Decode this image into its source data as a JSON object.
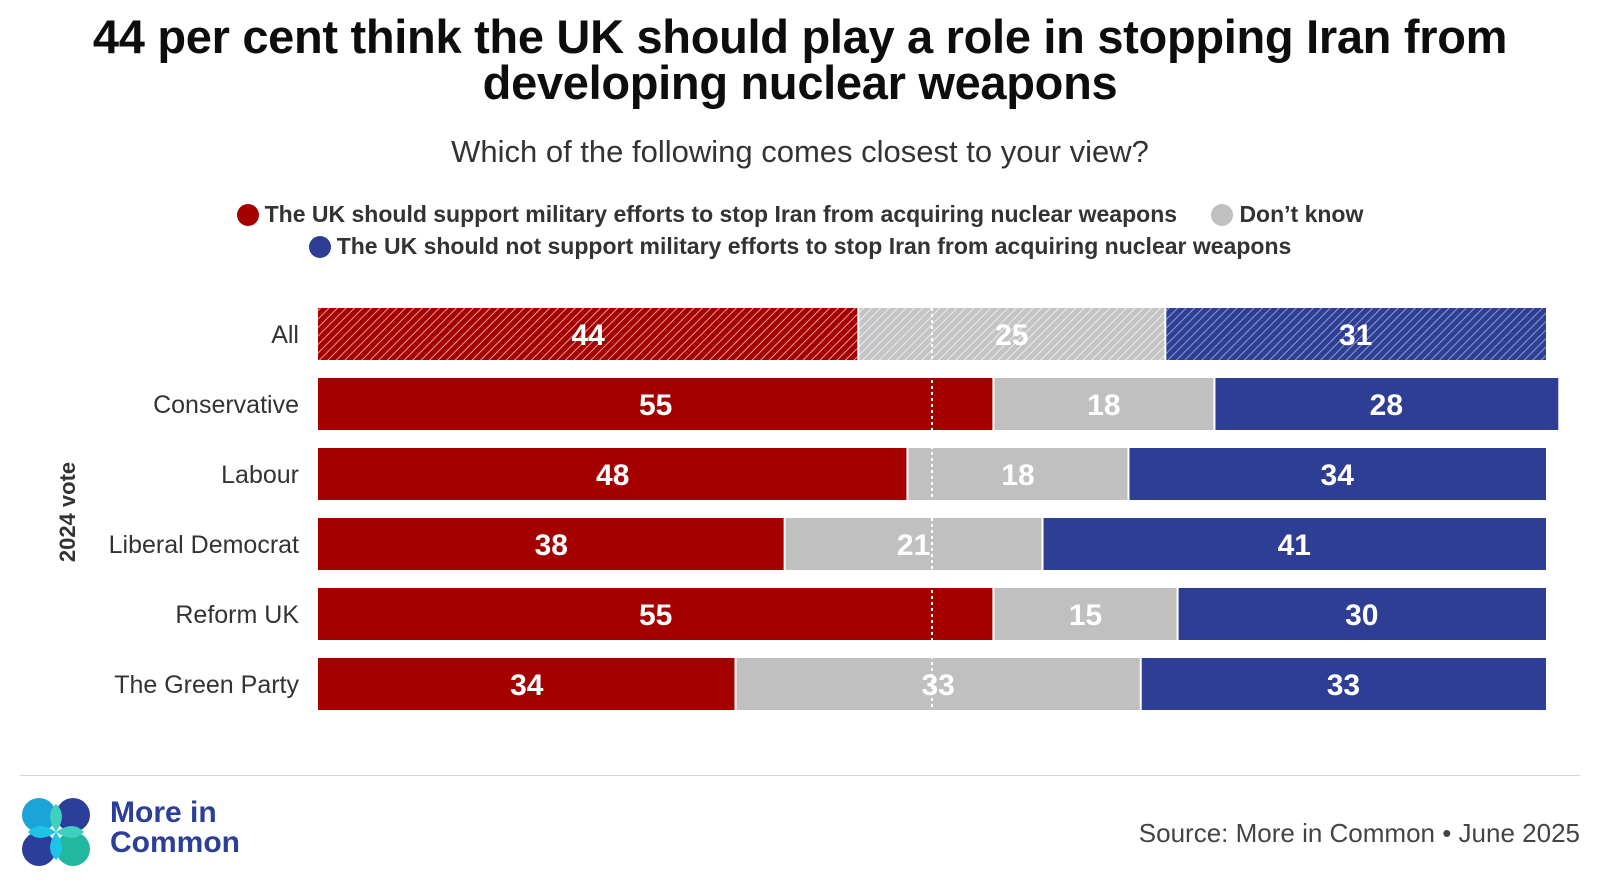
{
  "title_line1": "44 per cent think the UK should play a role in stopping Iran from",
  "title_line2": "developing nuclear weapons",
  "subtitle": "Which of the following comes closest to your view?",
  "legend": {
    "support": "The UK should support military efforts to stop Iran from acquiring nuclear weapons",
    "dont_know": "Don’t know",
    "not_support": "The UK should not support military efforts to stop Iran from acquiring nuclear weapons"
  },
  "colors": {
    "support": "#a50000",
    "dont_know": "#c0c0c0",
    "not_support": "#2e3e94",
    "label_dark": "#333333"
  },
  "axis_group_label": "2024 vote",
  "footer": {
    "logo_line1": "More in",
    "logo_line2": "Common",
    "source": "Source: More in Common • June 2025"
  },
  "chart_data": {
    "type": "bar",
    "orientation": "horizontal",
    "stacked": true,
    "percent": true,
    "categories": [
      "All",
      "Conservative",
      "Labour",
      "Liberal Democrat",
      "Reform UK",
      "The Green Party"
    ],
    "series": [
      {
        "name": "The UK should support military efforts to stop Iran from acquiring nuclear weapons",
        "key": "support",
        "values": [
          44,
          55,
          48,
          38,
          55,
          34
        ]
      },
      {
        "name": "Don’t know",
        "key": "dont_know",
        "values": [
          25,
          18,
          18,
          21,
          15,
          33
        ]
      },
      {
        "name": "The UK should not support military efforts to stop Iran from acquiring nuclear weapons",
        "key": "not_support",
        "values": [
          31,
          28,
          34,
          41,
          30,
          33
        ]
      }
    ],
    "hatched_categories": [
      "All"
    ],
    "reference_line": 50,
    "xlim": [
      0,
      100
    ]
  }
}
